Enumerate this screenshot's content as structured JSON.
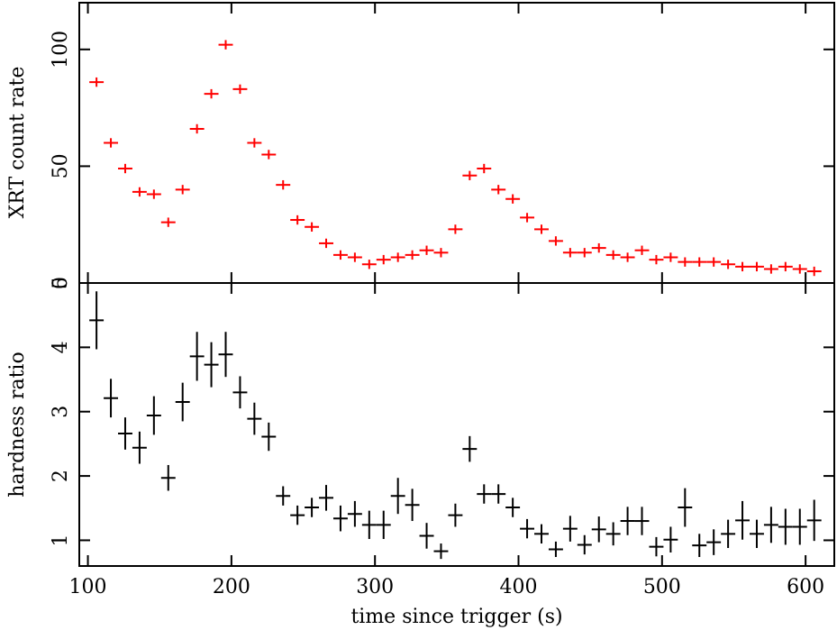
{
  "chart_data": [
    {
      "type": "errorbar",
      "ylabel": "XRT count rate",
      "color": "#ff0000",
      "x": [
        106,
        116,
        126,
        136,
        146,
        156,
        166,
        176,
        186,
        196,
        206,
        216,
        226,
        236,
        246,
        256,
        266,
        276,
        286,
        296,
        306,
        316,
        326,
        336,
        346,
        356,
        366,
        376,
        386,
        396,
        406,
        416,
        426,
        436,
        446,
        456,
        466,
        476,
        486,
        496,
        506,
        516,
        526,
        536,
        546,
        556,
        566,
        576,
        586,
        596,
        606
      ],
      "values": [
        86,
        60,
        49,
        39,
        38,
        26,
        40,
        66,
        81,
        102,
        83,
        60,
        55,
        42,
        27,
        24,
        17,
        12,
        11,
        8,
        10,
        11,
        12,
        14,
        13,
        23,
        46,
        49,
        40,
        36,
        28,
        23,
        18,
        13,
        13,
        15,
        12,
        11,
        14,
        10,
        11,
        9,
        9,
        9,
        8,
        7,
        7,
        6,
        7,
        6,
        5
      ],
      "yerr": 2,
      "xerr": 5,
      "xlim": [
        94,
        620
      ],
      "ylim": [
        0,
        120
      ],
      "yticks": [
        0,
        50,
        100
      ]
    },
    {
      "type": "errorbar",
      "ylabel": "hardness ratio",
      "xlabel": "time since trigger (s)",
      "color": "#000000",
      "x": [
        106,
        116,
        126,
        136,
        146,
        156,
        166,
        176,
        186,
        196,
        206,
        216,
        226,
        236,
        246,
        256,
        266,
        276,
        286,
        296,
        306,
        316,
        326,
        336,
        346,
        356,
        366,
        376,
        386,
        396,
        406,
        416,
        426,
        436,
        446,
        456,
        466,
        476,
        486,
        496,
        506,
        516,
        526,
        536,
        546,
        556,
        566,
        576,
        586,
        596,
        606
      ],
      "values": [
        4.42,
        3.21,
        2.66,
        2.44,
        2.94,
        1.97,
        3.15,
        3.86,
        3.73,
        3.89,
        3.3,
        2.89,
        2.61,
        1.69,
        1.39,
        1.51,
        1.66,
        1.34,
        1.41,
        1.24,
        1.24,
        1.69,
        1.55,
        1.07,
        0.83,
        1.39,
        2.42,
        1.72,
        1.72,
        1.51,
        1.18,
        1.1,
        0.86,
        1.18,
        0.93,
        1.17,
        1.1,
        1.3,
        1.3,
        0.9,
        1.01,
        1.51,
        0.92,
        0.97,
        1.1,
        1.31,
        1.1,
        1.24,
        1.21,
        1.21,
        1.31
      ],
      "yerr": [
        0.45,
        0.3,
        0.25,
        0.25,
        0.3,
        0.2,
        0.3,
        0.38,
        0.35,
        0.35,
        0.25,
        0.25,
        0.22,
        0.15,
        0.15,
        0.15,
        0.2,
        0.2,
        0.2,
        0.22,
        0.22,
        0.28,
        0.25,
        0.2,
        0.12,
        0.18,
        0.2,
        0.15,
        0.15,
        0.15,
        0.15,
        0.15,
        0.12,
        0.2,
        0.15,
        0.2,
        0.18,
        0.22,
        0.22,
        0.15,
        0.2,
        0.3,
        0.18,
        0.2,
        0.22,
        0.3,
        0.22,
        0.28,
        0.28,
        0.28,
        0.32
      ],
      "xerr": 5,
      "xlim": [
        94,
        620
      ],
      "ylim": [
        0.6,
        5
      ],
      "yticks": [
        1,
        2,
        3,
        4,
        5
      ],
      "xticks": [
        100,
        200,
        300,
        400,
        500,
        600
      ]
    }
  ]
}
